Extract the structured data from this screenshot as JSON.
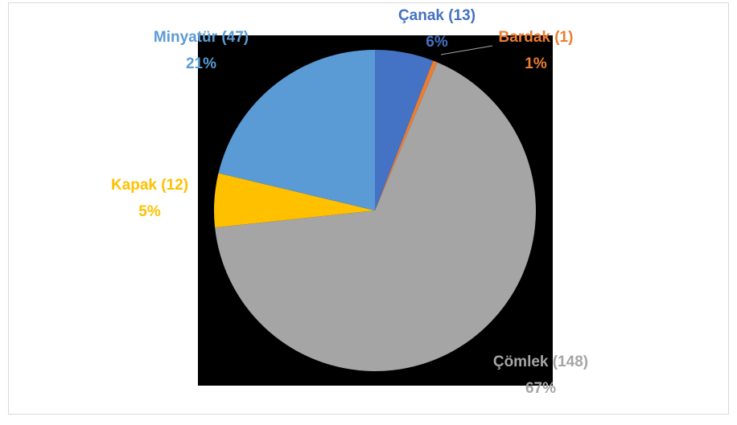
{
  "chart_data": {
    "type": "pie",
    "categories": [
      "Çanak (13)",
      "Bardak (1)",
      "Çömlek (148)",
      "Kapak (12)",
      "Minyatür (47)"
    ],
    "values": [
      13,
      1,
      148,
      12,
      47
    ],
    "value_labels": [
      "6%",
      "1%",
      "67%",
      "5%",
      "21%"
    ],
    "colors": [
      "#4472c4",
      "#ed7d31",
      "#a5a5a5",
      "#ffc000",
      "#5b9bd5"
    ]
  }
}
